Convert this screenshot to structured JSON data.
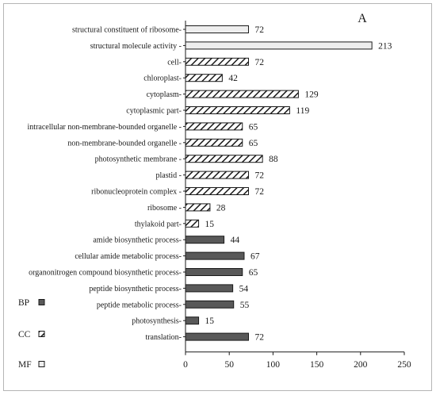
{
  "chart_data": {
    "type": "bar",
    "orientation": "horizontal",
    "panel_label": "A",
    "xlim": [
      0,
      250
    ],
    "xticks": [
      0,
      50,
      100,
      150,
      200,
      250
    ],
    "grid": false,
    "legend": {
      "placement": "bottom-left",
      "entries": [
        {
          "key": "BP",
          "label": "BP",
          "style": "solid"
        },
        {
          "key": "CC",
          "label": "CC",
          "style": "hatched"
        },
        {
          "key": "MF",
          "label": "MF",
          "style": "light"
        }
      ]
    },
    "categories": [
      {
        "label": "structural constituent of ribosome-",
        "value": 72,
        "group": "MF"
      },
      {
        "label": "structural molecule activity -",
        "value": 213,
        "group": "MF"
      },
      {
        "label": "cell-",
        "value": 72,
        "group": "CC"
      },
      {
        "label": "chloroplast-",
        "value": 42,
        "group": "CC"
      },
      {
        "label": "cytoplasm-",
        "value": 129,
        "group": "CC"
      },
      {
        "label": "cytoplasmic part-",
        "value": 119,
        "group": "CC"
      },
      {
        "label": "intracellular non-membrane-bounded organelle -",
        "value": 65,
        "group": "CC"
      },
      {
        "label": "non-membrane-bounded organelle -",
        "value": 65,
        "group": "CC"
      },
      {
        "label": "photosynthetic membrane -",
        "value": 88,
        "group": "CC"
      },
      {
        "label": "plastid -",
        "value": 72,
        "group": "CC"
      },
      {
        "label": "ribonucleoprotein complex -",
        "value": 72,
        "group": "CC"
      },
      {
        "label": "ribosome -",
        "value": 28,
        "group": "CC"
      },
      {
        "label": "thylakoid part-",
        "value": 15,
        "group": "CC"
      },
      {
        "label": "amide biosynthetic process-",
        "value": 44,
        "group": "BP"
      },
      {
        "label": "cellular amide metabolic process-",
        "value": 67,
        "group": "BP"
      },
      {
        "label": "organonitrogen compound biosynthetic process-",
        "value": 65,
        "group": "BP"
      },
      {
        "label": "peptide biosynthetic process-",
        "value": 54,
        "group": "BP"
      },
      {
        "label": "peptide metabolic process-",
        "value": 55,
        "group": "BP"
      },
      {
        "label": "photosynthesis-",
        "value": 15,
        "group": "BP"
      },
      {
        "label": "translation-",
        "value": 72,
        "group": "BP"
      }
    ],
    "colors": {
      "BP": "#595959",
      "CC_hatch": "#1a1a1a",
      "MF": "#eeeeee",
      "outline": "#1a1a1a"
    }
  }
}
